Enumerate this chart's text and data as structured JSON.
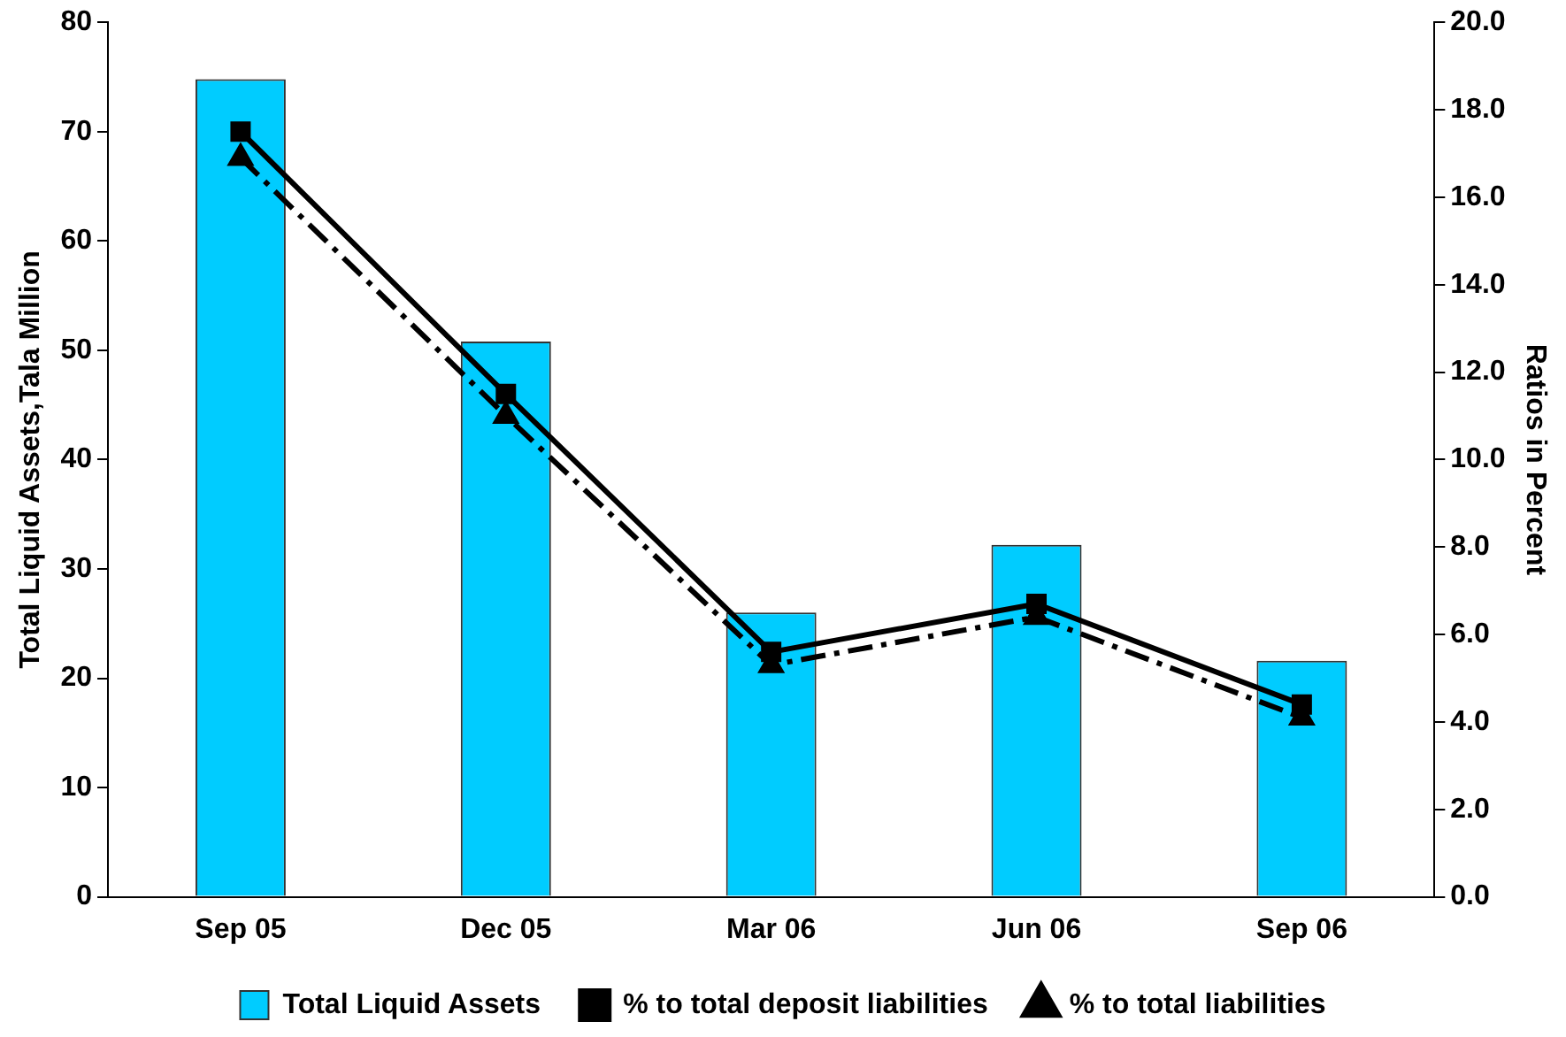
{
  "chart_data": {
    "type": "bar",
    "categories": [
      "Sep 05",
      "Dec 05",
      "Mar 06",
      "Jun 06",
      "Sep 06"
    ],
    "ylabel": "Total Liquid Assets,Tala Million",
    "y2label": "Ratios in Percent",
    "ylim": [
      0,
      80
    ],
    "yticks": [
      0,
      10,
      20,
      30,
      40,
      50,
      60,
      70,
      80
    ],
    "y2lim": [
      0,
      20
    ],
    "y2ticks": [
      {
        "value": 0,
        "label": "0.0"
      },
      {
        "value": 2,
        "label": "2.0"
      },
      {
        "value": 4,
        "label": "4.0"
      },
      {
        "value": 6,
        "label": "6.0"
      },
      {
        "value": 8,
        "label": "8.0"
      },
      {
        "value": 10,
        "label": "10.0"
      },
      {
        "value": 12,
        "label": "12.0"
      },
      {
        "value": 14,
        "label": "14.0"
      },
      {
        "value": 16,
        "label": "16.0"
      },
      {
        "value": 18,
        "label": "18.0"
      },
      {
        "value": 20,
        "label": "20.0"
      }
    ],
    "series": [
      {
        "name": "Total Liquid Assets",
        "color": "#00ccff",
        "values": [
          74.8,
          50.8,
          26.0,
          32.2,
          21.6
        ]
      },
      {
        "name": "% to total deposit liabilities",
        "type": "line",
        "axis": "y2",
        "color": "#000000",
        "marker": "square",
        "line_style": "solid",
        "values": [
          17.5,
          11.5,
          5.6,
          6.7,
          4.4
        ]
      },
      {
        "name": "% to total liabilities",
        "type": "line",
        "axis": "y2",
        "color": "#000000",
        "marker": "triangle",
        "line_style": "dashdot",
        "values": [
          16.9,
          11.0,
          5.3,
          6.4,
          4.1
        ]
      }
    ],
    "grid": false,
    "legend": "bottom"
  }
}
